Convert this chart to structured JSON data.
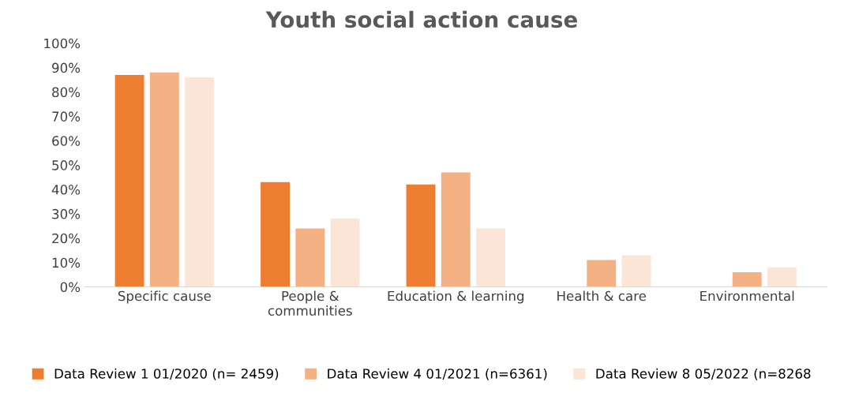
{
  "chart_data": {
    "type": "bar",
    "title": "Youth social action cause",
    "categories": [
      "Specific cause",
      "People &\ncommunities",
      "Education & learning",
      "Health & care",
      "Environmental"
    ],
    "series": [
      {
        "name": "Data Review 1 01/2020 (n= 2459)",
        "color": "#ed7d31",
        "values": [
          0.87,
          0.43,
          0.42,
          null,
          null
        ]
      },
      {
        "name": "Data Review 4 01/2021 (n=6361)",
        "color": "#f4b183",
        "values": [
          0.88,
          0.24,
          0.47,
          0.11,
          0.06
        ]
      },
      {
        "name": "Data Review 8 05/2022 (n=8268",
        "color": "#fbe5d6",
        "values": [
          0.86,
          0.28,
          0.24,
          0.13,
          0.08
        ]
      }
    ],
    "ylim": [
      0,
      1
    ],
    "yticks": [
      {
        "value": 0,
        "label": "0%"
      },
      {
        "value": 0.1,
        "label": "10%"
      },
      {
        "value": 0.2,
        "label": "20%"
      },
      {
        "value": 0.3,
        "label": "30%"
      },
      {
        "value": 0.4,
        "label": "40%"
      },
      {
        "value": 0.5,
        "label": "50%"
      },
      {
        "value": 0.6,
        "label": "60%"
      },
      {
        "value": 0.7,
        "label": "70%"
      },
      {
        "value": 0.8,
        "label": "80%"
      },
      {
        "value": 0.9,
        "label": "90%"
      },
      {
        "value": 1,
        "label": "100%"
      }
    ],
    "grid": false,
    "legend": "bottom"
  }
}
